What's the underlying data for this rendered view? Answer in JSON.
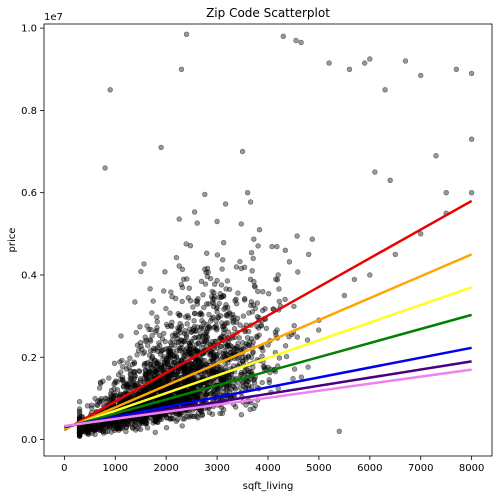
{
  "chart_data": {
    "type": "scatter",
    "title": "Zip Code Scatterplot",
    "xlabel": "sqft_living",
    "ylabel": "price",
    "y_offset_text": "1e7",
    "xlim": [
      -400,
      8400
    ],
    "ylim": [
      -400000,
      10100000
    ],
    "xticks": [
      0,
      1000,
      2000,
      3000,
      4000,
      5000,
      6000,
      7000,
      8000
    ],
    "xtick_labels": [
      "0",
      "1000",
      "2000",
      "3000",
      "4000",
      "5000",
      "6000",
      "7000",
      "8000"
    ],
    "yticks": [
      0,
      2000000,
      4000000,
      6000000,
      8000000,
      10000000
    ],
    "ytick_labels": [
      "0.0",
      "0.2",
      "0.4",
      "0.6",
      "0.8",
      "1.0"
    ],
    "grid": false,
    "legend": "none",
    "scatter_color": "#000000",
    "scatter_alpha": 0.4,
    "scatter_points": {
      "x": [
        1000,
        1500,
        2000,
        2500,
        3000,
        3500,
        4000,
        4500,
        5000,
        1200,
        1800,
        2200,
        2800,
        3200,
        3800,
        4200,
        4800,
        5500,
        6000,
        6500,
        7000,
        7500,
        8000,
        900,
        2300,
        2400,
        3500,
        4300,
        4550,
        4650,
        5200,
        5600,
        5900,
        6000,
        6300,
        6700,
        7000,
        7700,
        8000,
        1900,
        3000,
        3600,
        6100,
        6400,
        7300,
        7500,
        8000,
        800,
        5400
      ],
      "y": [
        500000,
        800000,
        1100000,
        1400000,
        1700000,
        2000000,
        2300000,
        2600000,
        2900000,
        1000000,
        1500000,
        2000000,
        2600000,
        3000000,
        3600000,
        4000000,
        4500000,
        3500000,
        4000000,
        4500000,
        5000000,
        5500000,
        6000000,
        8500000,
        9000000,
        9850000,
        7000000,
        9800000,
        9700000,
        9650000,
        9150000,
        9000000,
        9150000,
        9250000,
        8500000,
        9200000,
        8850000,
        9000000,
        8900000,
        7100000,
        5300000,
        6000000,
        6500000,
        6300000,
        6900000,
        6000000,
        7300000,
        6600000,
        200000
      ]
    },
    "series": [
      {
        "color": "#ee0000",
        "x": [
          0,
          8000
        ],
        "y": [
          230000,
          5800000
        ]
      },
      {
        "color": "#ffa500",
        "x": [
          0,
          8000
        ],
        "y": [
          250000,
          4500000
        ]
      },
      {
        "color": "#ffff22",
        "x": [
          0,
          8000
        ],
        "y": [
          270000,
          3700000
        ]
      },
      {
        "color": "#008000",
        "x": [
          0,
          8000
        ],
        "y": [
          290000,
          3030000
        ]
      },
      {
        "color": "#0000ee",
        "x": [
          0,
          8000
        ],
        "y": [
          310000,
          2230000
        ]
      },
      {
        "color": "#4b0082",
        "x": [
          0,
          8000
        ],
        "y": [
          320000,
          1900000
        ]
      },
      {
        "color": "#ee82ee",
        "x": [
          0,
          8000
        ],
        "y": [
          330000,
          1700000
        ]
      }
    ]
  }
}
